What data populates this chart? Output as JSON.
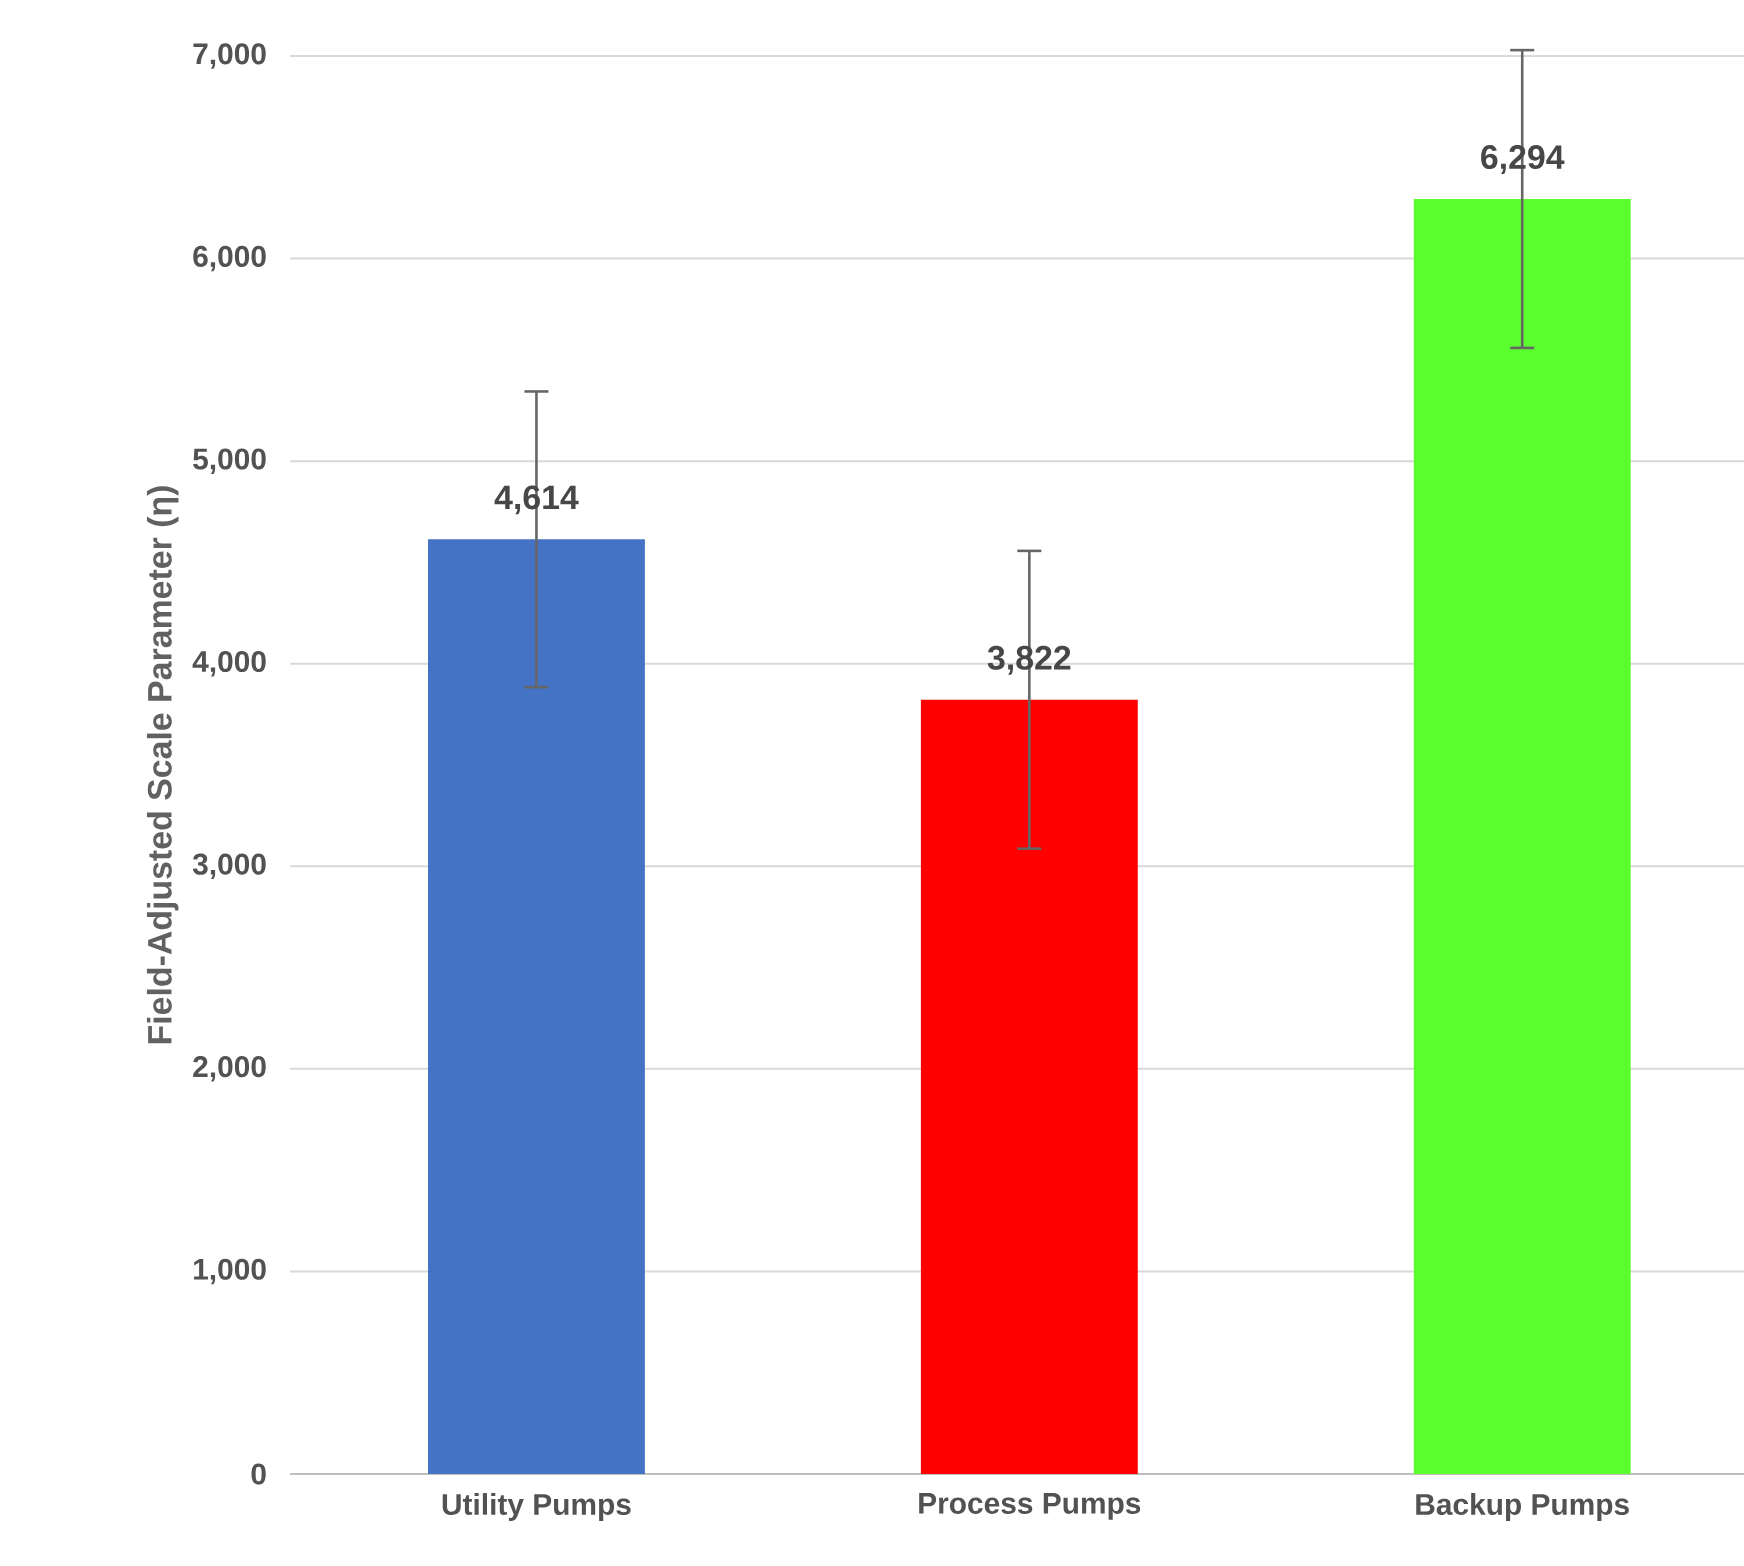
{
  "chart_data": {
    "type": "bar",
    "ylabel": "Field-Adjusted Scale Parameter (η)",
    "categories": [
      "Utility Pumps",
      "Process Pumps",
      "Backup Pumps"
    ],
    "values": [
      4614,
      3822,
      6294
    ],
    "colors": [
      "#4472c4",
      "#ff0000",
      "#5cff2e"
    ],
    "errors": [
      730,
      735,
      735
    ],
    "value_labels": [
      "4,614",
      "3,822",
      "6,294"
    ],
    "ylim": [
      0,
      7000
    ],
    "yticks": [
      {
        "value": 0,
        "label": "0"
      },
      {
        "value": 1000,
        "label": "1,000"
      },
      {
        "value": 2000,
        "label": "2,000"
      },
      {
        "value": 3000,
        "label": "3,000"
      },
      {
        "value": 4000,
        "label": "4,000"
      },
      {
        "value": 5000,
        "label": "5,000"
      },
      {
        "value": 6000,
        "label": "6,000"
      },
      {
        "value": 7000,
        "label": "7,000"
      }
    ],
    "grid": "y"
  }
}
